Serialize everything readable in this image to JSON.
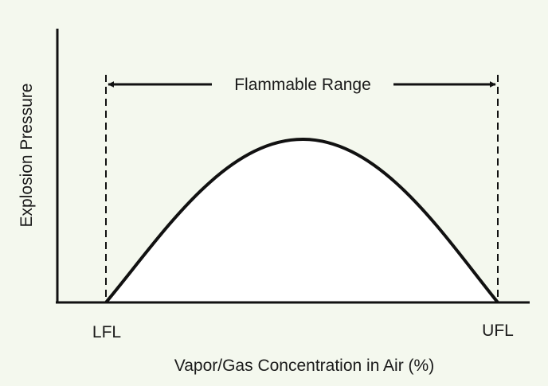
{
  "chart_data": {
    "type": "diagram",
    "curve_shape": "bell",
    "ylabel": "Explosion Pressure",
    "xlabel": "Vapor/Gas Concentration in Air (%)",
    "range_label": "Flammable Range",
    "lower_limit_label": "LFL",
    "upper_limit_label": "UFL",
    "grid": false,
    "colors": {
      "background": "#f4f8ee",
      "curve": "#111111",
      "fill": "#ffffff",
      "text": "#1a1a1a"
    }
  }
}
